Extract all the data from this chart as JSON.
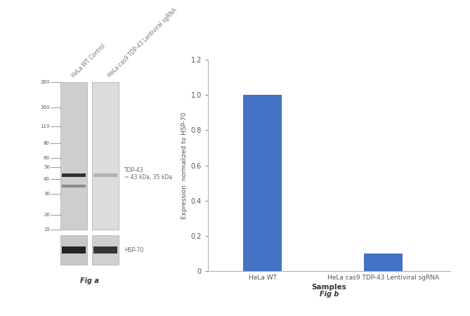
{
  "bar_categories": [
    "HeLa WT",
    "HeLa cas9 TDP-43 Lentiviral sgRNA"
  ],
  "bar_values": [
    1.0,
    0.1
  ],
  "bar_color": "#4472C4",
  "ylabel": "Expression  normalized to HSP-70",
  "xlabel": "Samples",
  "ylim": [
    0,
    1.2
  ],
  "yticks": [
    0,
    0.2,
    0.4,
    0.6,
    0.8,
    1.0,
    1.2
  ],
  "fig_b_label": "Fig b",
  "fig_a_label": "Fig a",
  "wb_markers": [
    260,
    160,
    110,
    80,
    60,
    50,
    40,
    30,
    20,
    15
  ],
  "lane_labels": [
    "HeLa WT Control",
    "HeLa cas9 TDP-43 Lentiviral sgRNA"
  ],
  "tdp43_annotation": "TDP-43\n~ 43 kDa, 35 kDa",
  "hsp70_label": "HSP-70",
  "bg_color": "#ffffff",
  "log_min": 1.176,
  "log_max": 2.415
}
